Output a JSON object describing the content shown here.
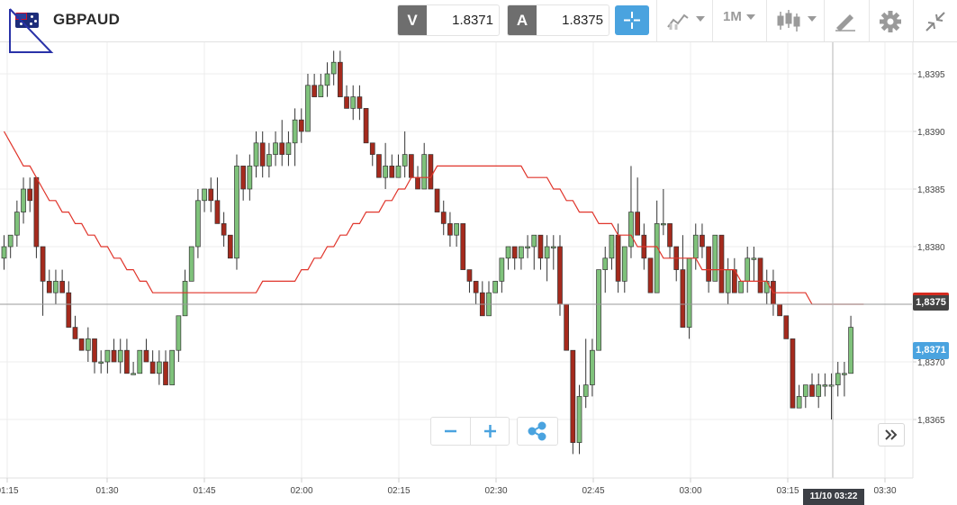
{
  "instrument": {
    "symbol": "GBPAUD",
    "flag_icon": "gb-au-flag-icon"
  },
  "quotes": {
    "sell": {
      "letter": "V",
      "value": "1.8371"
    },
    "buy": {
      "letter": "A",
      "value": "1.8375"
    }
  },
  "toolbar": {
    "timeframe": "1M",
    "icons": [
      "crosshair-icon",
      "chart-type-icon",
      "candlestick-icon",
      "drawing-pencil-icon",
      "gear-icon",
      "collapse-icon"
    ]
  },
  "colors": {
    "up": "#7fc27b",
    "down": "#a52a1d",
    "ma": "#e0352b",
    "accent": "#4aa3df"
  },
  "price_axis": {
    "ticks": [
      "1,8395",
      "1,8390",
      "1,8385",
      "1,8380",
      "1,8375",
      "1,8370",
      "1,8365"
    ],
    "ma_label": "1,8375",
    "bid_label": "1,8371"
  },
  "time_axis": {
    "ticks": [
      "01:15",
      "01:30",
      "01:45",
      "02:00",
      "02:15",
      "02:30",
      "02:45",
      "03:00",
      "03:15",
      "03:30"
    ],
    "cursor_label": "11/10 03:22"
  },
  "chart_data": {
    "type": "candlestick",
    "price_range": [
      1.8362,
      1.8398
    ],
    "interval": "1M",
    "candles": [
      [
        1.8379,
        1.8381,
        1.8378,
        1.838
      ],
      [
        1.838,
        1.8381,
        1.8379,
        1.8381
      ],
      [
        1.8381,
        1.8384,
        1.838,
        1.8383
      ],
      [
        1.8383,
        1.8386,
        1.8382,
        1.8385
      ],
      [
        1.8385,
        1.8386,
        1.8383,
        1.8384
      ],
      [
        1.8386,
        1.8386,
        1.8379,
        1.838
      ],
      [
        1.838,
        1.838,
        1.8374,
        1.8377
      ],
      [
        1.8377,
        1.8378,
        1.8376,
        1.8376
      ],
      [
        1.8376,
        1.8378,
        1.8375,
        1.8377
      ],
      [
        1.8377,
        1.8378,
        1.8376,
        1.8376
      ],
      [
        1.8376,
        1.8377,
        1.8373,
        1.8373
      ],
      [
        1.8373,
        1.8374,
        1.8372,
        1.8372
      ],
      [
        1.8372,
        1.8372,
        1.8371,
        1.8371
      ],
      [
        1.8371,
        1.8373,
        1.837,
        1.8372
      ],
      [
        1.8372,
        1.8372,
        1.8369,
        1.837
      ],
      [
        1.837,
        1.8371,
        1.8369,
        1.837
      ],
      [
        1.837,
        1.8371,
        1.8369,
        1.8371
      ],
      [
        1.8371,
        1.8372,
        1.837,
        1.837
      ],
      [
        1.837,
        1.8372,
        1.8369,
        1.8371
      ],
      [
        1.8371,
        1.8372,
        1.8369,
        1.8369
      ],
      [
        1.8369,
        1.837,
        1.8369,
        1.8369
      ],
      [
        1.8369,
        1.8371,
        1.8369,
        1.8371
      ],
      [
        1.8371,
        1.8372,
        1.837,
        1.837
      ],
      [
        1.837,
        1.8371,
        1.8369,
        1.8369
      ],
      [
        1.8369,
        1.8371,
        1.8368,
        1.837
      ],
      [
        1.837,
        1.8371,
        1.8368,
        1.8368
      ],
      [
        1.8368,
        1.8371,
        1.8368,
        1.8371
      ],
      [
        1.8371,
        1.8374,
        1.837,
        1.8374
      ],
      [
        1.8374,
        1.8378,
        1.8374,
        1.8377
      ],
      [
        1.8377,
        1.838,
        1.8377,
        1.838
      ],
      [
        1.838,
        1.8385,
        1.8379,
        1.8384
      ],
      [
        1.8384,
        1.8385,
        1.8383,
        1.8385
      ],
      [
        1.8385,
        1.8386,
        1.8383,
        1.8384
      ],
      [
        1.8384,
        1.8386,
        1.8382,
        1.8382
      ],
      [
        1.8382,
        1.8383,
        1.838,
        1.8381
      ],
      [
        1.8381,
        1.8381,
        1.8379,
        1.8379
      ],
      [
        1.8379,
        1.8388,
        1.8378,
        1.8387
      ],
      [
        1.8387,
        1.8387,
        1.8384,
        1.8385
      ],
      [
        1.8385,
        1.8388,
        1.8384,
        1.8387
      ],
      [
        1.8387,
        1.839,
        1.8386,
        1.8389
      ],
      [
        1.8389,
        1.839,
        1.8386,
        1.8387
      ],
      [
        1.8387,
        1.8389,
        1.8386,
        1.8388
      ],
      [
        1.8388,
        1.839,
        1.8387,
        1.8389
      ],
      [
        1.8389,
        1.8391,
        1.8387,
        1.8388
      ],
      [
        1.8388,
        1.839,
        1.8387,
        1.8389
      ],
      [
        1.8389,
        1.8392,
        1.8387,
        1.8391
      ],
      [
        1.8391,
        1.8392,
        1.8389,
        1.839
      ],
      [
        1.839,
        1.8395,
        1.839,
        1.8394
      ],
      [
        1.8394,
        1.8395,
        1.8393,
        1.8393
      ],
      [
        1.8393,
        1.8395,
        1.8393,
        1.8394
      ],
      [
        1.8394,
        1.8396,
        1.8393,
        1.8395
      ],
      [
        1.8395,
        1.8397,
        1.8394,
        1.8396
      ],
      [
        1.8396,
        1.8397,
        1.8393,
        1.8393
      ],
      [
        1.8393,
        1.8394,
        1.8392,
        1.8392
      ],
      [
        1.8392,
        1.8394,
        1.8391,
        1.8393
      ],
      [
        1.8393,
        1.8394,
        1.8391,
        1.8392
      ],
      [
        1.8392,
        1.8392,
        1.8389,
        1.8389
      ],
      [
        1.8389,
        1.8389,
        1.8387,
        1.8388
      ],
      [
        1.8388,
        1.8388,
        1.8386,
        1.8386
      ],
      [
        1.8386,
        1.8389,
        1.8385,
        1.8387
      ],
      [
        1.8387,
        1.8388,
        1.8386,
        1.8386
      ],
      [
        1.8386,
        1.8388,
        1.8386,
        1.8387
      ],
      [
        1.8387,
        1.839,
        1.8386,
        1.8388
      ],
      [
        1.8388,
        1.8388,
        1.8386,
        1.8386
      ],
      [
        1.8386,
        1.8387,
        1.8385,
        1.8385
      ],
      [
        1.8385,
        1.8389,
        1.8385,
        1.8388
      ],
      [
        1.8388,
        1.8388,
        1.8385,
        1.8385
      ],
      [
        1.8385,
        1.8385,
        1.8383,
        1.8383
      ],
      [
        1.8383,
        1.8384,
        1.8381,
        1.8382
      ],
      [
        1.8382,
        1.8383,
        1.838,
        1.8381
      ],
      [
        1.8381,
        1.8382,
        1.838,
        1.8382
      ],
      [
        1.8382,
        1.8382,
        1.8378,
        1.8378
      ],
      [
        1.8378,
        1.8378,
        1.8376,
        1.8377
      ],
      [
        1.8377,
        1.8377,
        1.8375,
        1.8376
      ],
      [
        1.8376,
        1.8377,
        1.8374,
        1.8374
      ],
      [
        1.8374,
        1.8377,
        1.8374,
        1.8376
      ],
      [
        1.8376,
        1.8377,
        1.8376,
        1.8377
      ],
      [
        1.8377,
        1.8379,
        1.8376,
        1.8379
      ],
      [
        1.8379,
        1.838,
        1.8378,
        1.838
      ],
      [
        1.838,
        1.838,
        1.8378,
        1.8379
      ],
      [
        1.8379,
        1.838,
        1.8378,
        1.838
      ],
      [
        1.838,
        1.8381,
        1.8379,
        1.838
      ],
      [
        1.838,
        1.8381,
        1.8378,
        1.8381
      ],
      [
        1.8381,
        1.8381,
        1.8378,
        1.8379
      ],
      [
        1.8379,
        1.8381,
        1.8377,
        1.838
      ],
      [
        1.838,
        1.8381,
        1.8378,
        1.838
      ],
      [
        1.838,
        1.8381,
        1.8374,
        1.8375
      ],
      [
        1.8375,
        1.8375,
        1.8371,
        1.8371
      ],
      [
        1.8371,
        1.8371,
        1.8362,
        1.8363
      ],
      [
        1.8363,
        1.8368,
        1.8362,
        1.8367
      ],
      [
        1.8367,
        1.8372,
        1.8366,
        1.8368
      ],
      [
        1.8368,
        1.8372,
        1.8367,
        1.8371
      ],
      [
        1.8371,
        1.8378,
        1.8371,
        1.8378
      ],
      [
        1.8378,
        1.838,
        1.8376,
        1.8379
      ],
      [
        1.8379,
        1.8381,
        1.8378,
        1.8381
      ],
      [
        1.8381,
        1.8382,
        1.8376,
        1.8377
      ],
      [
        1.8377,
        1.838,
        1.8376,
        1.838
      ],
      [
        1.838,
        1.8387,
        1.8379,
        1.8383
      ],
      [
        1.8383,
        1.8386,
        1.8381,
        1.8381
      ],
      [
        1.8381,
        1.8382,
        1.8378,
        1.8379
      ],
      [
        1.8379,
        1.8379,
        1.8376,
        1.8376
      ],
      [
        1.8376,
        1.8384,
        1.8376,
        1.8382
      ],
      [
        1.8382,
        1.8385,
        1.8381,
        1.8382
      ],
      [
        1.8382,
        1.8382,
        1.8379,
        1.838
      ],
      [
        1.838,
        1.838,
        1.8377,
        1.8378
      ],
      [
        1.8378,
        1.8381,
        1.8373,
        1.8373
      ],
      [
        1.8373,
        1.8379,
        1.8372,
        1.8379
      ],
      [
        1.8379,
        1.8382,
        1.8378,
        1.8381
      ],
      [
        1.8381,
        1.8382,
        1.8379,
        1.838
      ],
      [
        1.838,
        1.838,
        1.8376,
        1.8377
      ],
      [
        1.8377,
        1.8381,
        1.8377,
        1.8381
      ],
      [
        1.8381,
        1.8381,
        1.8376,
        1.8376
      ],
      [
        1.8376,
        1.8379,
        1.8375,
        1.8378
      ],
      [
        1.8378,
        1.8379,
        1.8376,
        1.8376
      ],
      [
        1.8376,
        1.8377,
        1.8376,
        1.8377
      ],
      [
        1.8377,
        1.838,
        1.8376,
        1.8379
      ],
      [
        1.8379,
        1.838,
        1.8377,
        1.8379
      ],
      [
        1.8379,
        1.8379,
        1.8376,
        1.8376
      ],
      [
        1.8376,
        1.8378,
        1.8375,
        1.8377
      ],
      [
        1.8377,
        1.8378,
        1.8374,
        1.8375
      ],
      [
        1.8375,
        1.8375,
        1.8374,
        1.8374
      ],
      [
        1.8374,
        1.8374,
        1.8372,
        1.8372
      ],
      [
        1.8372,
        1.8372,
        1.8366,
        1.8366
      ],
      [
        1.8366,
        1.8368,
        1.8366,
        1.8367
      ],
      [
        1.8367,
        1.8368,
        1.8366,
        1.8368
      ],
      [
        1.8368,
        1.8369,
        1.8367,
        1.8367
      ],
      [
        1.8367,
        1.8369,
        1.8366,
        1.8368
      ],
      [
        1.8368,
        1.8369,
        1.8367,
        1.8368
      ],
      [
        1.8368,
        1.8369,
        1.8365,
        1.8368
      ],
      [
        1.8368,
        1.837,
        1.8367,
        1.8369
      ],
      [
        1.8369,
        1.837,
        1.8367,
        1.8369
      ],
      [
        1.8369,
        1.8374,
        1.8369,
        1.8373
      ]
    ],
    "moving_average": {
      "name": "MA",
      "values": [
        1.839,
        1.8389,
        1.8388,
        1.8387,
        1.8387,
        1.8386,
        1.8385,
        1.8384,
        1.8384,
        1.8383,
        1.8383,
        1.8382,
        1.8382,
        1.8381,
        1.8381,
        1.838,
        1.838,
        1.8379,
        1.8379,
        1.8378,
        1.8378,
        1.8377,
        1.8377,
        1.8376,
        1.8376,
        1.8376,
        1.8376,
        1.8376,
        1.8376,
        1.8376,
        1.8376,
        1.8376,
        1.8376,
        1.8376,
        1.8376,
        1.8376,
        1.8376,
        1.8376,
        1.8376,
        1.8376,
        1.8377,
        1.8377,
        1.8377,
        1.8377,
        1.8377,
        1.8377,
        1.8378,
        1.8378,
        1.8379,
        1.8379,
        1.838,
        1.838,
        1.8381,
        1.8381,
        1.8382,
        1.8382,
        1.8383,
        1.8383,
        1.8383,
        1.8384,
        1.8384,
        1.8385,
        1.8385,
        1.8386,
        1.8386,
        1.8386,
        1.8386,
        1.8387,
        1.8387,
        1.8387,
        1.8387,
        1.8387,
        1.8387,
        1.8387,
        1.8387,
        1.8387,
        1.8387,
        1.8387,
        1.8387,
        1.8387,
        1.8387,
        1.8386,
        1.8386,
        1.8386,
        1.8386,
        1.8385,
        1.8385,
        1.8384,
        1.8384,
        1.8383,
        1.8383,
        1.8383,
        1.8382,
        1.8382,
        1.8382,
        1.8381,
        1.8381,
        1.8381,
        1.838,
        1.838,
        1.838,
        1.838,
        1.8379,
        1.8379,
        1.8379,
        1.8379,
        1.8379,
        1.8379,
        1.8378,
        1.8378,
        1.8378,
        1.8378,
        1.8378,
        1.8378,
        1.8377,
        1.8377,
        1.8377,
        1.8377,
        1.8377,
        1.8376,
        1.8376,
        1.8376,
        1.8376,
        1.8376,
        1.8376,
        1.8375,
        1.8375,
        1.8375,
        1.8375,
        1.8375,
        1.8375,
        1.8375,
        1.8375,
        1.8375
      ]
    },
    "reference_price": 1.8375,
    "cursor_time": "11/10 03:22"
  }
}
